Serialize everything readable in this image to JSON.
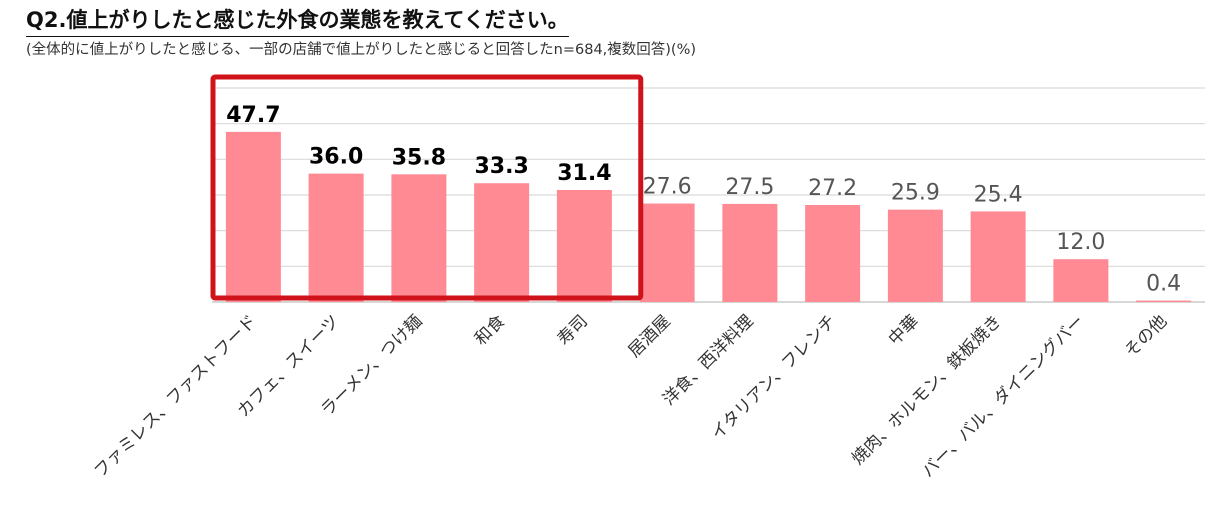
{
  "title": "Q2.値上がりしたと感じた外食の業態を教えてください。",
  "subtitle": "(全体的に値上がりしたと感じる、一部の店舗で値上がりしたと感じると回答したn=684,複数回答)(%)",
  "colors": {
    "bar": "#ff8a94",
    "highlight_box": "#d0121b",
    "grid": "#d9d9d9"
  },
  "chart_data": {
    "type": "bar",
    "categories": [
      "ファミレス、ファストフード",
      "カフェ、スイーツ",
      "ラーメン、つけ麺",
      "和食",
      "寿司",
      "居酒屋",
      "洋食、西洋料理",
      "イタリアン、フレンチ",
      "中華",
      "焼肉、ホルモン、鉄板焼き",
      "バー、バル、ダイニングバー",
      "その他"
    ],
    "values": [
      47.7,
      36.0,
      35.8,
      33.3,
      31.4,
      27.6,
      27.5,
      27.2,
      25.9,
      25.4,
      12.0,
      0.4
    ],
    "value_labels": [
      "47.7",
      "36.0",
      "35.8",
      "33.3",
      "31.4",
      "27.6",
      "27.5",
      "27.2",
      "25.9",
      "25.4",
      "12.0",
      "0.4"
    ],
    "highlighted_top_n": 5,
    "ylim": [
      0,
      60
    ],
    "grid": true,
    "xlabel": "",
    "ylabel": ""
  }
}
